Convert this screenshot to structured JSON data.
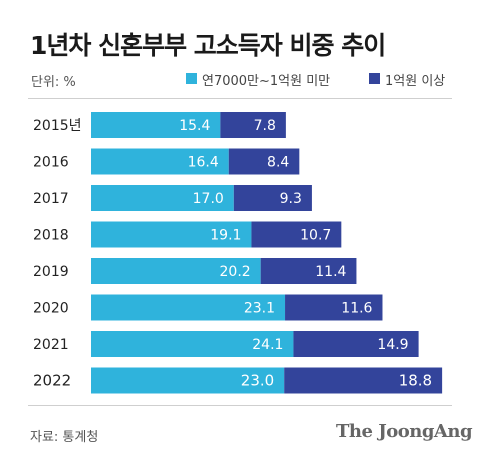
{
  "title": "1년차 신혼부부 고소득자 비중 추이",
  "unit_label": "단위: %",
  "source": "자료: 통계청",
  "brand": "The JoongAng",
  "colors": {
    "low_income": "#2fb3dc",
    "high_income": "#33449b",
    "divider": "#cfcfcf"
  },
  "chart_data": {
    "type": "bar",
    "orientation": "horizontal",
    "stacked": true,
    "categories": [
      "2015년",
      "2016",
      "2017",
      "2018",
      "2019",
      "2020",
      "2021",
      "2022"
    ],
    "series": [
      {
        "name": "연7000만~1억원 미만",
        "values": [
          15.4,
          16.4,
          17.0,
          19.1,
          20.2,
          23.1,
          24.1,
          23.0
        ]
      },
      {
        "name": "1억원 이상",
        "values": [
          7.8,
          8.4,
          9.3,
          10.7,
          11.4,
          11.6,
          14.9,
          18.8
        ]
      }
    ],
    "value_labels": [
      [
        "15.4",
        "16.4",
        "17.0",
        "19.1",
        "20.2",
        "23.1",
        "24.1",
        "23.0"
      ],
      [
        "7.8",
        "8.4",
        "9.3",
        "10.7",
        "11.4",
        "11.6",
        "14.9",
        "18.8"
      ]
    ],
    "legend_position": "top-right",
    "grid": false
  }
}
